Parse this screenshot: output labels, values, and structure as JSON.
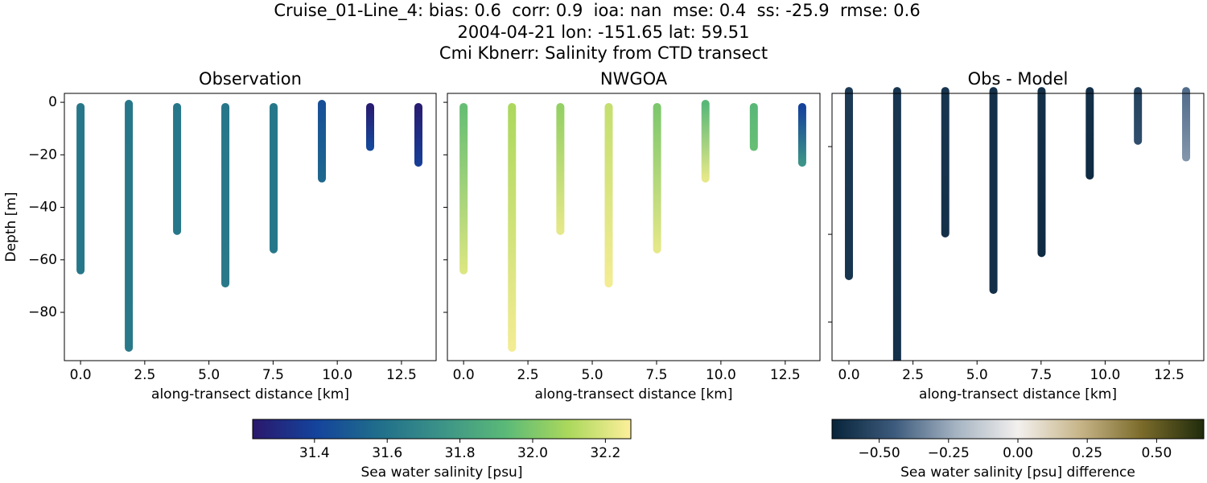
{
  "suptitle": [
    "Cruise_01-Line_4: bias: 0.6  corr: 0.9  ioa: nan  mse: 0.4  ss: -25.9  rmse: 0.6",
    "2004-04-21 lon: -151.65 lat: 59.51",
    "Cmi Kbnerr: Salinity from CTD transect"
  ],
  "chart_data": [
    {
      "type": "scatter",
      "title": "Observation",
      "xlabel": "along-transect distance [km]",
      "ylabel": "Depth [m]",
      "xlim": [
        -0.63,
        13.85
      ],
      "ylim": [
        -98.4,
        3.4
      ],
      "xticks": [
        {
          "value": 0,
          "label": "0.0"
        },
        {
          "value": 2.5,
          "label": "2.5"
        },
        {
          "value": 5,
          "label": "5.0"
        },
        {
          "value": 7.5,
          "label": "7.5"
        },
        {
          "value": 10,
          "label": "10.0"
        },
        {
          "value": 12.5,
          "label": "12.5"
        }
      ],
      "yticks": [
        0,
        {
          "value": -20,
          "label": "−20"
        },
        {
          "value": -40,
          "label": "−40"
        },
        {
          "value": -60,
          "label": "−60"
        },
        {
          "value": -80,
          "label": "−80"
        }
      ],
      "yticklabels": true,
      "colorbar": 0,
      "casts": [
        {
          "x": 0,
          "y": [
            -1.8,
            -64
          ],
          "values": [
            31.62,
            31.62
          ]
        },
        {
          "x": 1.88,
          "y": [
            -0.6,
            -93.5
          ],
          "values": [
            31.62,
            31.63
          ]
        },
        {
          "x": 3.76,
          "y": [
            -1.8,
            -49
          ],
          "values": [
            31.62,
            31.62
          ]
        },
        {
          "x": 5.64,
          "y": [
            -1.8,
            -69
          ],
          "values": [
            31.62,
            31.63
          ]
        },
        {
          "x": 7.52,
          "y": [
            -1.8,
            -56
          ],
          "values": [
            31.62,
            31.62
          ]
        },
        {
          "x": 9.4,
          "y": [
            -0.6,
            -29
          ],
          "values": [
            31.45,
            31.55
          ]
        },
        {
          "x": 11.28,
          "y": [
            -1.8,
            -17
          ],
          "values": [
            31.25,
            31.42
          ]
        },
        {
          "x": 13.16,
          "y": [
            -1.8,
            -23
          ],
          "values": [
            31.25,
            31.38
          ]
        }
      ]
    },
    {
      "type": "scatter",
      "title": "NWGOA",
      "xlabel": "along-transect distance [km]",
      "xlim": [
        -0.63,
        13.85
      ],
      "ylim": [
        -98.4,
        3.4
      ],
      "xticks": [
        {
          "value": 0,
          "label": "0.0"
        },
        {
          "value": 2.5,
          "label": "2.5"
        },
        {
          "value": 5,
          "label": "5.0"
        },
        {
          "value": 7.5,
          "label": "7.5"
        },
        {
          "value": 10,
          "label": "10.0"
        },
        {
          "value": 12.5,
          "label": "12.5"
        }
      ],
      "yticks": [
        0,
        -20,
        -40,
        -60,
        -80
      ],
      "yticklabels": false,
      "colorbar": 0,
      "casts": [
        {
          "x": 0,
          "y": [
            -1.8,
            -64
          ],
          "values": [
            31.95,
            32.2
          ]
        },
        {
          "x": 1.88,
          "y": [
            -1.8,
            -93.5
          ],
          "values": [
            32.1,
            32.25
          ]
        },
        {
          "x": 3.76,
          "y": [
            -1.8,
            -49
          ],
          "values": [
            32.05,
            32.22
          ]
        },
        {
          "x": 5.64,
          "y": [
            -1.8,
            -69
          ],
          "values": [
            32.15,
            32.25
          ]
        },
        {
          "x": 7.52,
          "y": [
            -1.8,
            -56
          ],
          "values": [
            32.0,
            32.22
          ]
        },
        {
          "x": 9.4,
          "y": [
            -0.6,
            -29
          ],
          "values": [
            31.92,
            32.22
          ]
        },
        {
          "x": 11.28,
          "y": [
            -1.8,
            -17
          ],
          "values": [
            31.92,
            31.95
          ]
        },
        {
          "x": 13.16,
          "y": [
            -1.8,
            -23
          ],
          "values": [
            31.4,
            31.75
          ]
        }
      ]
    },
    {
      "type": "scatter",
      "title": "Obs - Model",
      "xlabel": "along-transect distance [km]",
      "xlim": [
        -0.66,
        13.85
      ],
      "ylim": [
        -93.2,
        -1.8
      ],
      "xticks": [
        {
          "value": 0,
          "label": "0.0"
        },
        {
          "value": 2.5,
          "label": "2.5"
        },
        {
          "value": 5,
          "label": "5.0"
        },
        {
          "value": 7.5,
          "label": "7.5"
        },
        {
          "value": 10,
          "label": "10.0"
        },
        {
          "value": 12.5,
          "label": "12.5"
        }
      ],
      "yticks": [
        -20,
        -50,
        -80
      ],
      "yticklabels": false,
      "colorbar": 1,
      "casts": [
        {
          "x": 0,
          "y": [
            -1,
            -64.3
          ],
          "values": [
            -0.58,
            -0.6
          ]
        },
        {
          "x": 1.88,
          "y": [
            -1,
            -97
          ],
          "values": [
            -0.6,
            -0.62
          ]
        },
        {
          "x": 3.76,
          "y": [
            -1,
            -49.7
          ],
          "values": [
            -0.6,
            -0.62
          ]
        },
        {
          "x": 5.64,
          "y": [
            -1,
            -69
          ],
          "values": [
            -0.62,
            -0.62
          ]
        },
        {
          "x": 7.52,
          "y": [
            -1,
            -56.4
          ],
          "values": [
            -0.62,
            -0.64
          ]
        },
        {
          "x": 9.4,
          "y": [
            -1,
            -29.9
          ],
          "values": [
            -0.62,
            -0.64
          ]
        },
        {
          "x": 11.28,
          "y": [
            -1,
            -18
          ],
          "values": [
            -0.55,
            -0.5
          ]
        },
        {
          "x": 13.16,
          "y": [
            -1,
            -23.7
          ],
          "values": [
            -0.4,
            -0.3
          ]
        }
      ]
    }
  ],
  "colorbars": [
    {
      "label": "Sea water salinity [psu]",
      "clim": [
        31.23,
        32.27
      ],
      "ticks": [
        31.4,
        31.6,
        31.8,
        {
          "value": 32,
          "label": "32.0"
        },
        32.2
      ],
      "colormap": [
        "#2a186c",
        "#14439c",
        "#206e8b",
        "#3c9387",
        "#5ab978",
        "#aad85c",
        "#fdef9a"
      ]
    },
    {
      "label": "Sea water salinity [psu] difference",
      "clim": [
        -0.67,
        0.67
      ],
      "ticks": [
        {
          "value": -0.5,
          "label": "−0.50"
        },
        {
          "value": -0.25,
          "label": "−0.25"
        },
        {
          "value": 0,
          "label": "0.00"
        },
        {
          "value": 0.25,
          "label": "0.25"
        },
        {
          "value": 0.5,
          "label": "0.50"
        }
      ],
      "colormap": [
        "#08243a",
        "#3c5a7c",
        "#a5b3c2",
        "#f3f0ee",
        "#c7b589",
        "#7b6b2a",
        "#1f2b0c"
      ]
    }
  ]
}
